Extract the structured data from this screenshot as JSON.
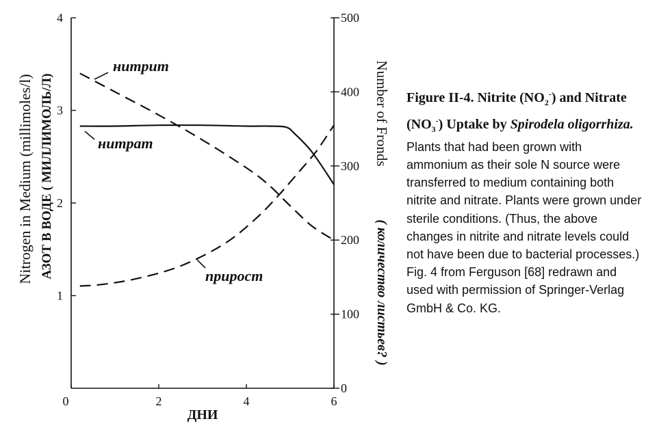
{
  "chart_data": {
    "type": "line",
    "x": [
      0,
      0.5,
      1,
      1.5,
      2,
      2.5,
      3,
      3.5,
      4,
      4.5,
      5,
      5.3,
      5.6,
      6
    ],
    "xlabel": "ДНИ",
    "xticks": [
      "0",
      "2",
      "4",
      "6"
    ],
    "xlim": [
      0,
      6
    ],
    "ylabel_left_en": "Nitrogen in Medium (millimoles/l)",
    "ylabel_left_ru": "АЗОТ В ВОДЕ ( МИЛЛИМОЛЬ/Л)",
    "yticks_left": [
      "1",
      "2",
      "3",
      "4"
    ],
    "ylim_left": [
      0,
      4
    ],
    "ylabel_right_en": "Number of Fronds",
    "ylabel_right_ru": "( количество листьев? )",
    "yticks_right": [
      "0",
      "100",
      "200",
      "300",
      "400",
      "500"
    ],
    "ylim_right": [
      0,
      500
    ],
    "series": [
      {
        "name": "нитрит",
        "axis": "left",
        "style": "dashed",
        "x": [
          0.2,
          1,
          2,
          3,
          4,
          4.5,
          5,
          5.5,
          6
        ],
        "values": [
          3.4,
          3.2,
          2.95,
          2.68,
          2.38,
          2.2,
          1.97,
          1.75,
          1.6
        ]
      },
      {
        "name": "нитрат",
        "axis": "left",
        "style": "solid",
        "x": [
          0.2,
          1,
          2,
          3,
          4,
          4.5,
          4.9,
          5.1,
          5.5,
          6
        ],
        "values": [
          2.83,
          2.83,
          2.84,
          2.84,
          2.83,
          2.83,
          2.82,
          2.75,
          2.55,
          2.2
        ]
      },
      {
        "name": "прирост",
        "axis": "right",
        "style": "dashed",
        "x": [
          0.2,
          0.7,
          1.5,
          2.5,
          3.5,
          4.2,
          4.7,
          5.2,
          5.6,
          6
        ],
        "values": [
          138,
          140,
          148,
          165,
          195,
          228,
          258,
          292,
          320,
          355
        ]
      }
    ]
  },
  "caption": {
    "heading_part1": "Figure II-4. Nitrite (NO",
    "sub1": "2",
    "sup1": "-",
    "heading_part2": ") and Nitrate (NO",
    "sub2": "3",
    "sup2": "-",
    "heading_part3": ") Uptake by",
    "species": "Spirodela oligorrhiza.",
    "body": "Plants that had been grown with ammonium as their sole N source were transferred to medium containing both nitrite and nitrate. Plants were grown under sterile conditions. (Thus, the above changes in nitrite and nitrate levels could not have been due to bacterial processes.) Fig. 4 from Ferguson [68] redrawn and used with permission of Springer-Verlag GmbH & Co. KG."
  }
}
